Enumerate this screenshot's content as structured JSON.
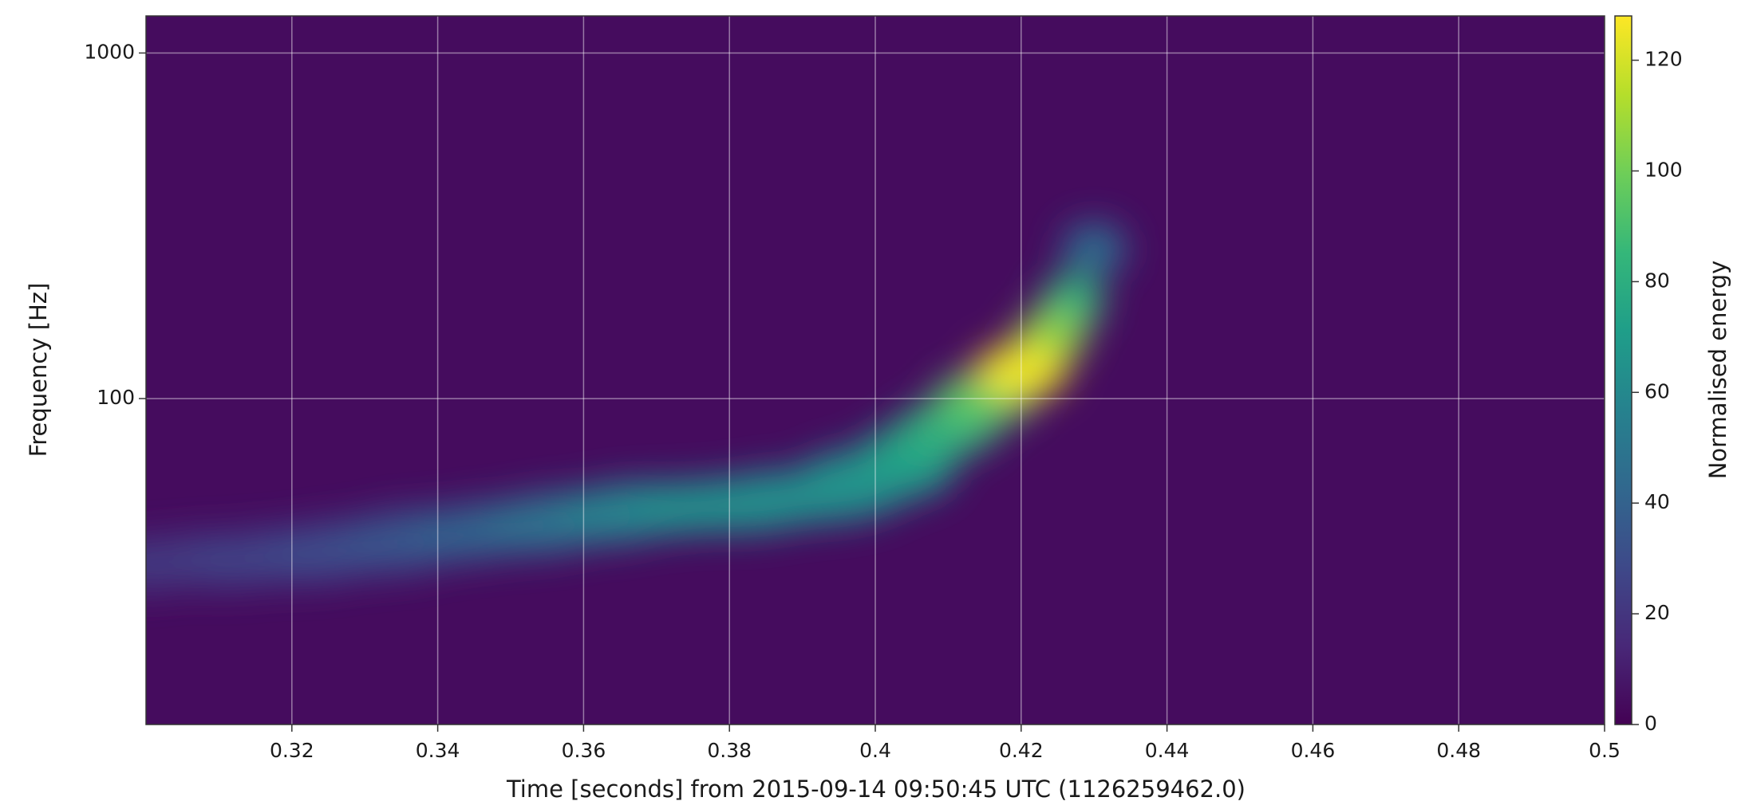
{
  "chart_data": {
    "type": "spectrogram",
    "xlabel": "Time [seconds] from 2015-09-14 09:50:45 UTC (1126259462.0)",
    "ylabel": "Frequency [Hz]",
    "xlim": [
      0.3,
      0.5
    ],
    "xticks": [
      0.32,
      0.34,
      0.36,
      0.38,
      0.4,
      0.42,
      0.44,
      0.46,
      0.48,
      0.5
    ],
    "ylim": [
      11.4,
      1280
    ],
    "yticks": [
      100,
      1000
    ],
    "yscale": "log",
    "grid": true,
    "colormap": "viridis",
    "track": {
      "time": [
        0.3,
        0.31,
        0.32,
        0.33,
        0.34,
        0.35,
        0.36,
        0.37,
        0.38,
        0.39,
        0.4,
        0.405,
        0.41,
        0.415,
        0.42,
        0.424,
        0.427,
        0.43
      ],
      "frequency": [
        33,
        34,
        35,
        37,
        40,
        42,
        45,
        48,
        49,
        52,
        60,
        70,
        82,
        100,
        120,
        150,
        190,
        270
      ],
      "energy": [
        18,
        22,
        26,
        30,
        34,
        40,
        48,
        58,
        64,
        62,
        66,
        74,
        82,
        95,
        125,
        105,
        85,
        45
      ]
    },
    "colorbar": {
      "label": "Normalised energy",
      "clim": [
        0,
        128
      ],
      "ticks": [
        0,
        20,
        40,
        60,
        80,
        100,
        120
      ]
    }
  }
}
